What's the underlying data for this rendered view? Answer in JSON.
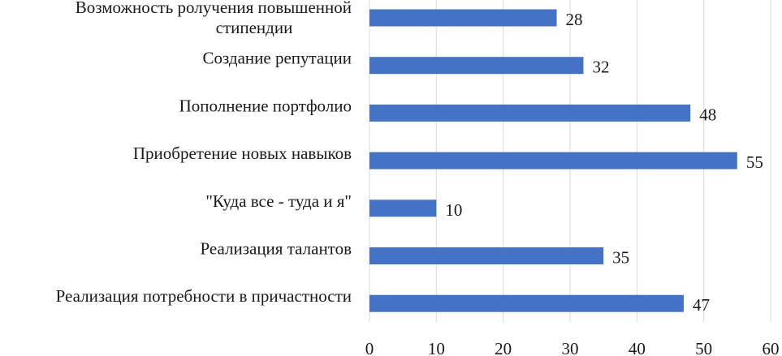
{
  "chart_data": {
    "type": "bar",
    "orientation": "horizontal",
    "categories": [
      [
        "Возможность ролучения повышенной",
        "стипендии"
      ],
      [
        "Создание репутации"
      ],
      [
        "Пополнение портфолио"
      ],
      [
        "Приобретение новых навыков"
      ],
      [
        "\"Куда все - туда и я\""
      ],
      [
        "Реализация талантов"
      ],
      [
        "Реализация потребности в причастности"
      ]
    ],
    "values": [
      28,
      32,
      48,
      55,
      10,
      35,
      47
    ],
    "xlim": [
      0,
      60
    ],
    "x_ticks": [
      0,
      10,
      20,
      30,
      40,
      50,
      60
    ],
    "title": "",
    "xlabel": "",
    "ylabel": "",
    "grid": true,
    "legend": "none",
    "bar_color": "#4472c4",
    "grid_color": "#d9d9d9"
  }
}
